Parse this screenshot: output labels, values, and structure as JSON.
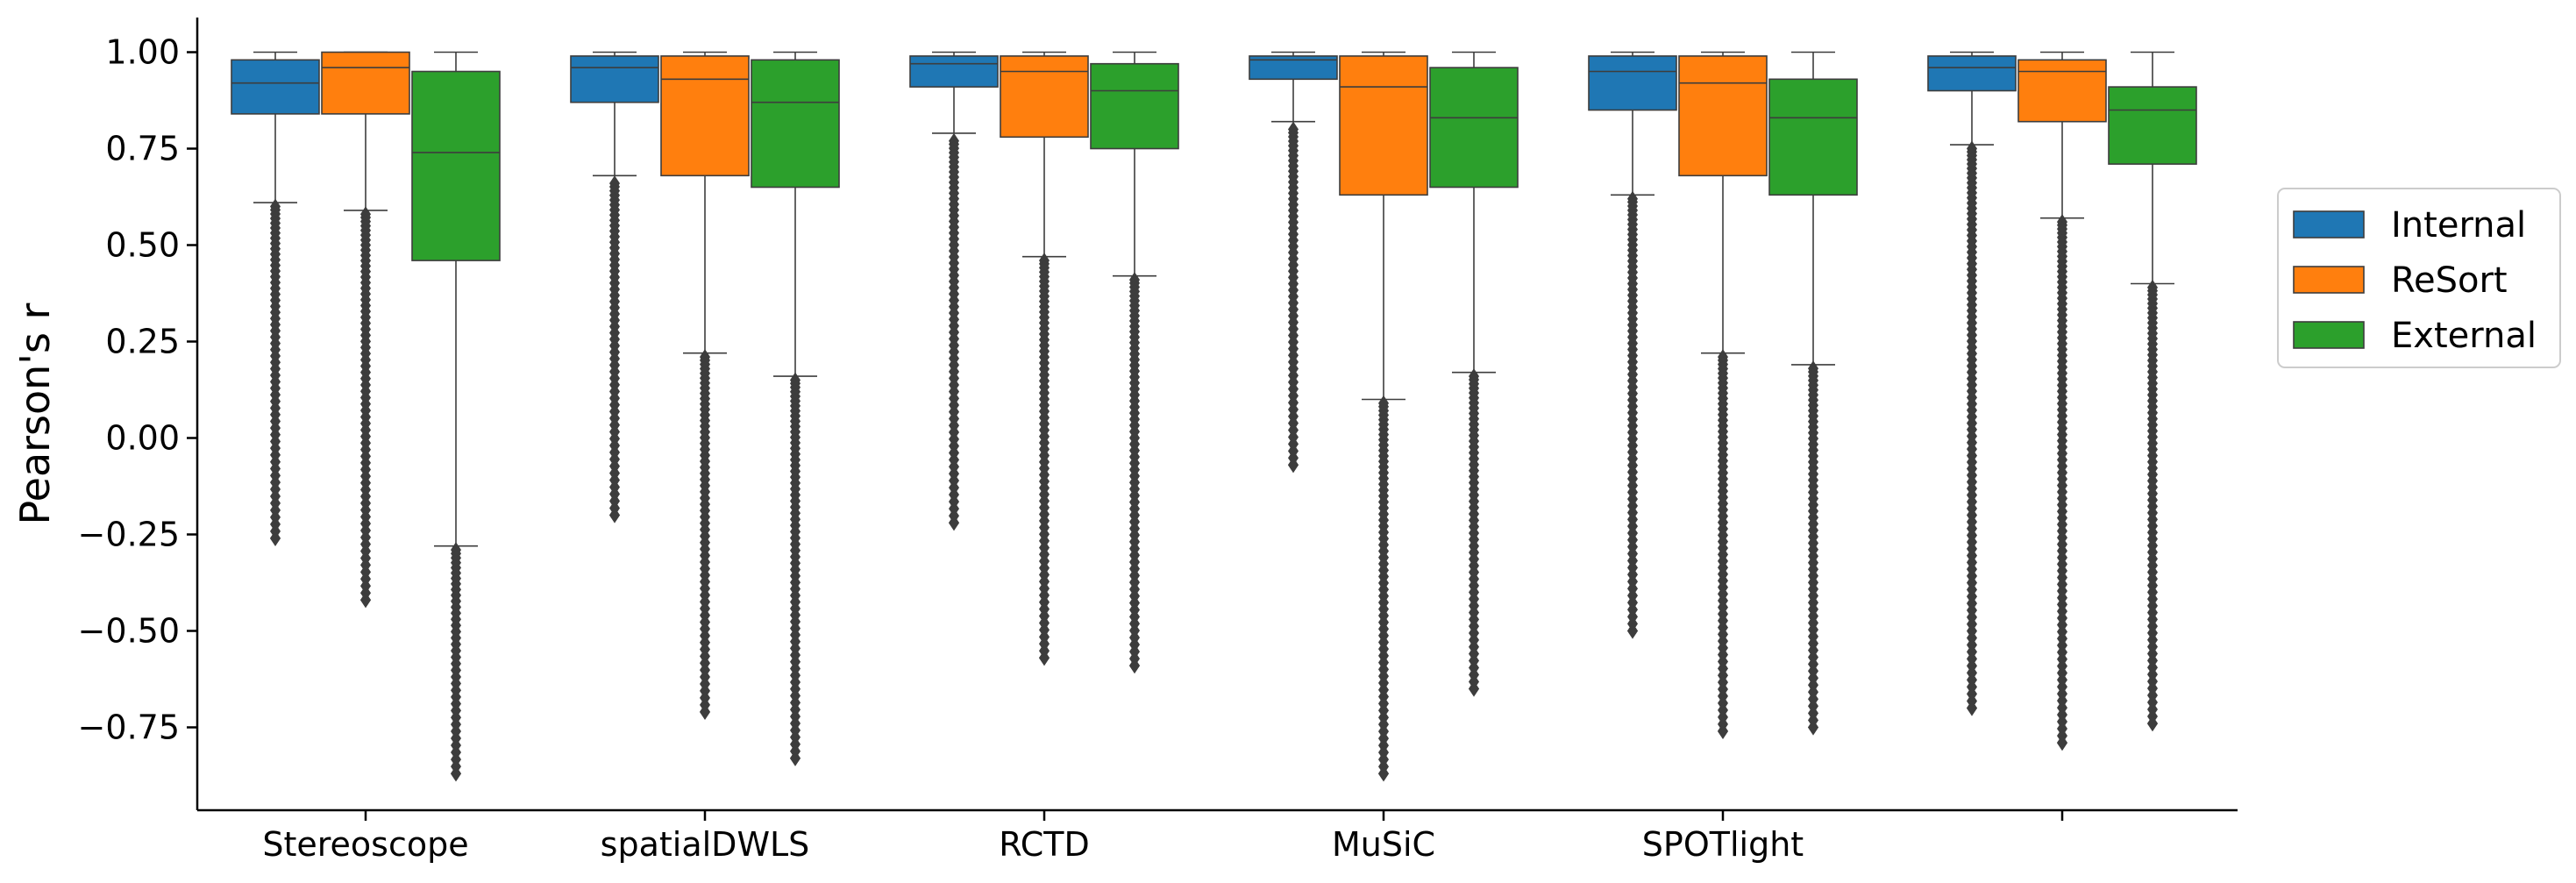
{
  "chart_data": {
    "type": "box",
    "ylabel": "Pearson's r",
    "xlabel": "",
    "ylim": [
      -0.96,
      1.09
    ],
    "y_ticks": [
      -0.75,
      -0.5,
      -0.25,
      0.0,
      0.25,
      0.5,
      0.75,
      1.0
    ],
    "y_tick_labels": [
      "−0.75",
      "−0.50",
      "−0.25",
      "0.00",
      "0.25",
      "0.50",
      "0.75",
      "1.00"
    ],
    "categories": [
      "Stereoscope",
      "spatialDWLS",
      "RCTD",
      "MuSiC",
      "SPOTlight",
      ""
    ],
    "legend": {
      "placement": "right, outside",
      "entries": [
        "Internal",
        "ReSort",
        "External"
      ]
    },
    "colors": {
      "Internal": "#1f77b4",
      "ReSort": "#ff7f0e",
      "External": "#2ca02c"
    },
    "series": [
      {
        "name": "Internal",
        "boxes": [
          {
            "q1": 0.84,
            "median": 0.92,
            "q3": 0.98,
            "whisker_low": 0.61,
            "whisker_high": 1.0
          },
          {
            "q1": 0.87,
            "median": 0.96,
            "q3": 0.99,
            "whisker_low": 0.68,
            "whisker_high": 1.0
          },
          {
            "q1": 0.91,
            "median": 0.97,
            "q3": 0.99,
            "whisker_low": 0.79,
            "whisker_high": 1.0
          },
          {
            "q1": 0.93,
            "median": 0.98,
            "q3": 0.99,
            "whisker_low": 0.82,
            "whisker_high": 1.0
          },
          {
            "q1": 0.85,
            "median": 0.95,
            "q3": 0.99,
            "whisker_low": 0.63,
            "whisker_high": 1.0
          },
          {
            "q1": 0.9,
            "median": 0.96,
            "q3": 0.99,
            "whisker_low": 0.76,
            "whisker_high": 1.0
          }
        ],
        "outlier_range": [
          [
            -0.26,
            0.6
          ],
          [
            -0.2,
            0.66
          ],
          [
            -0.22,
            0.77
          ],
          [
            -0.07,
            0.8
          ],
          [
            -0.5,
            0.62
          ],
          [
            -0.7,
            0.75
          ]
        ]
      },
      {
        "name": "ReSort",
        "boxes": [
          {
            "q1": 0.84,
            "median": 0.96,
            "q3": 1.0,
            "whisker_low": 0.59,
            "whisker_high": 1.0
          },
          {
            "q1": 0.68,
            "median": 0.93,
            "q3": 0.99,
            "whisker_low": 0.22,
            "whisker_high": 1.0
          },
          {
            "q1": 0.78,
            "median": 0.95,
            "q3": 0.99,
            "whisker_low": 0.47,
            "whisker_high": 1.0
          },
          {
            "q1": 0.63,
            "median": 0.91,
            "q3": 0.99,
            "whisker_low": 0.1,
            "whisker_high": 1.0
          },
          {
            "q1": 0.68,
            "median": 0.92,
            "q3": 0.99,
            "whisker_low": 0.22,
            "whisker_high": 1.0
          },
          {
            "q1": 0.82,
            "median": 0.95,
            "q3": 0.98,
            "whisker_low": 0.57,
            "whisker_high": 1.0
          }
        ],
        "outlier_range": [
          [
            -0.42,
            0.58
          ],
          [
            -0.71,
            0.21
          ],
          [
            -0.57,
            0.46
          ],
          [
            -0.87,
            0.09
          ],
          [
            -0.76,
            0.21
          ],
          [
            -0.79,
            0.56
          ]
        ]
      },
      {
        "name": "External",
        "boxes": [
          {
            "q1": 0.46,
            "median": 0.74,
            "q3": 0.95,
            "whisker_low": -0.28,
            "whisker_high": 1.0
          },
          {
            "q1": 0.65,
            "median": 0.87,
            "q3": 0.98,
            "whisker_low": 0.16,
            "whisker_high": 1.0
          },
          {
            "q1": 0.75,
            "median": 0.9,
            "q3": 0.97,
            "whisker_low": 0.42,
            "whisker_high": 1.0
          },
          {
            "q1": 0.65,
            "median": 0.83,
            "q3": 0.96,
            "whisker_low": 0.17,
            "whisker_high": 1.0
          },
          {
            "q1": 0.63,
            "median": 0.83,
            "q3": 0.93,
            "whisker_low": 0.19,
            "whisker_high": 1.0
          },
          {
            "q1": 0.71,
            "median": 0.85,
            "q3": 0.91,
            "whisker_low": 0.4,
            "whisker_high": 1.0
          }
        ],
        "outlier_range": [
          [
            -0.87,
            -0.29
          ],
          [
            -0.83,
            0.15
          ],
          [
            -0.59,
            0.41
          ],
          [
            -0.65,
            0.16
          ],
          [
            -0.75,
            0.18
          ],
          [
            -0.74,
            0.39
          ]
        ]
      }
    ]
  }
}
